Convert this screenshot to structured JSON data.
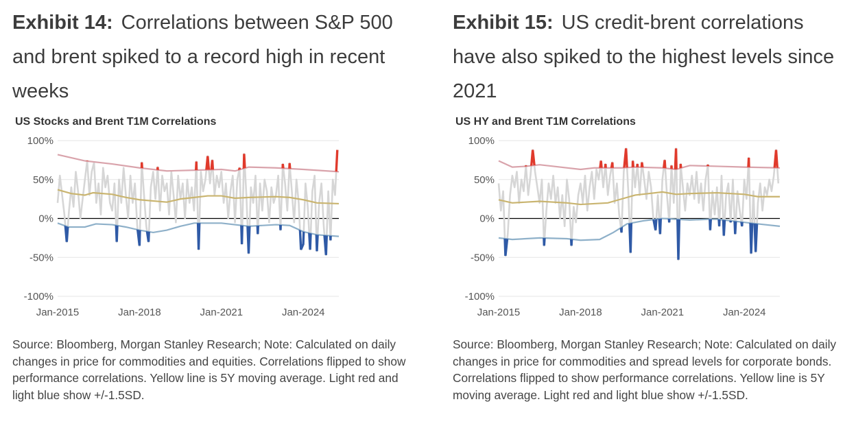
{
  "exhibits": [
    {
      "label": "Exhibit 14:",
      "title": "Correlations between S&P 500 and brent spiked to a record high in recent weeks",
      "source": "Source: Bloomberg, Morgan Stanley Research; Note: Calculated on daily changes in price for commodities and equities. Correlations flipped to show performance correlations. Yellow line is 5Y moving average. Light red and light blue show +/-1.5SD."
    },
    {
      "label": "Exhibit 15:",
      "title": "US credit-brent correlations have also spiked to the highest levels since 2021",
      "source": "Source: Bloomberg, Morgan Stanley Research; Note: Calculated on daily changes in price for commodities and spread levels for corporate bonds. Correlations flipped to show performance correlations. Yellow line is 5Y moving average. Light red and light blue show +/-1.5SD."
    }
  ],
  "colors": {
    "corr": "#d6d6d6",
    "above": "#e03a2c",
    "below": "#2f5aa6",
    "upper_band": "#d9a3ab",
    "lower_band": "#8eb0c9",
    "ma": "#c9b46f",
    "zero": "#000000",
    "grid": "#e6e6e6"
  },
  "chart_data": [
    {
      "type": "line",
      "title": "US Stocks and Brent T1M Correlations",
      "ylim": [
        -100,
        100
      ],
      "xlim": [
        2015.0,
        2025.3
      ],
      "yticks": [
        {
          "v": 100,
          "label": "100%"
        },
        {
          "v": 50,
          "label": "50%"
        },
        {
          "v": 0,
          "label": "0%"
        },
        {
          "v": -50,
          "label": "-50%"
        },
        {
          "v": -100,
          "label": "-100%"
        }
      ],
      "xticks": [
        {
          "v": 2015,
          "label": "Jan-2015"
        },
        {
          "v": 2018,
          "label": "Jan-2018"
        },
        {
          "v": 2021,
          "label": "Jan-2021"
        },
        {
          "v": 2024,
          "label": "Jan-2024"
        }
      ],
      "start": 2015.0,
      "step": 0.0833,
      "correlation": [
        20,
        55,
        30,
        5,
        -30,
        10,
        40,
        15,
        60,
        35,
        0,
        25,
        50,
        74,
        30,
        60,
        72,
        20,
        45,
        5,
        65,
        40,
        55,
        20,
        10,
        45,
        -30,
        50,
        20,
        65,
        30,
        0,
        55,
        20,
        45,
        -10,
        -35,
        72,
        30,
        -10,
        -30,
        40,
        60,
        25,
        66,
        10,
        55,
        35,
        45,
        5,
        60,
        30,
        -5,
        55,
        25,
        45,
        0,
        50,
        20,
        40,
        10,
        73,
        -40,
        60,
        35,
        50,
        80,
        45,
        75,
        30,
        55,
        40,
        60,
        20,
        45,
        0,
        35,
        55,
        -5,
        50,
        65,
        -33,
        83,
        30,
        -45,
        40,
        20,
        55,
        -20,
        45,
        10,
        50,
        35,
        -5,
        40,
        20,
        30,
        55,
        -15,
        70,
        45,
        10,
        71,
        35,
        -5,
        50,
        20,
        -40,
        -33,
        45,
        15,
        -40,
        35,
        55,
        -42,
        20,
        45,
        -10,
        -47,
        35,
        -28,
        50,
        30,
        88
      ],
      "upper_band": [
        [
          2015,
          82
        ],
        [
          2016,
          74
        ],
        [
          2017,
          70
        ],
        [
          2018,
          65
        ],
        [
          2019,
          61
        ],
        [
          2020,
          62
        ],
        [
          2021,
          63
        ],
        [
          2021.5,
          61
        ],
        [
          2022,
          66
        ],
        [
          2023,
          65
        ],
        [
          2024,
          63
        ],
        [
          2025.3,
          60
        ]
      ],
      "lower_band": [
        [
          2015,
          -6
        ],
        [
          2015.4,
          -11
        ],
        [
          2016,
          -11
        ],
        [
          2016.4,
          -7
        ],
        [
          2017,
          -8
        ],
        [
          2017.5,
          -11
        ],
        [
          2018,
          -15
        ],
        [
          2018.5,
          -18
        ],
        [
          2019,
          -15
        ],
        [
          2019.5,
          -10
        ],
        [
          2020,
          -6
        ],
        [
          2021,
          -6
        ],
        [
          2022,
          -10
        ],
        [
          2023,
          -8
        ],
        [
          2023.5,
          -9
        ],
        [
          2024,
          -17
        ],
        [
          2024.5,
          -21
        ],
        [
          2025.3,
          -23
        ]
      ],
      "moving_average": [
        [
          2015,
          37
        ],
        [
          2015.5,
          32
        ],
        [
          2016,
          30
        ],
        [
          2016.3,
          33
        ],
        [
          2017,
          31
        ],
        [
          2017.5,
          27
        ],
        [
          2018,
          24
        ],
        [
          2019,
          21
        ],
        [
          2019.5,
          25
        ],
        [
          2020,
          27
        ],
        [
          2020.5,
          29
        ],
        [
          2021,
          29
        ],
        [
          2021.5,
          26
        ],
        [
          2022,
          27
        ],
        [
          2023,
          28
        ],
        [
          2023.5,
          27
        ],
        [
          2024,
          24
        ],
        [
          2024.5,
          20
        ],
        [
          2025.3,
          19
        ]
      ]
    },
    {
      "type": "line",
      "title": "US HY and Brent T1M Correlations",
      "ylim": [
        -100,
        100
      ],
      "xlim": [
        2015.0,
        2025.3
      ],
      "yticks": [
        {
          "v": 100,
          "label": "100%"
        },
        {
          "v": 50,
          "label": "50%"
        },
        {
          "v": 0,
          "label": "0%"
        },
        {
          "v": -50,
          "label": "-50%"
        },
        {
          "v": -100,
          "label": "-100%"
        }
      ],
      "xticks": [
        {
          "v": 2015,
          "label": "Jan-2015"
        },
        {
          "v": 2018,
          "label": "Jan-2018"
        },
        {
          "v": 2021,
          "label": "Jan-2021"
        },
        {
          "v": 2024,
          "label": "Jan-2024"
        }
      ],
      "start": 2015.0,
      "step": 0.0833,
      "correlation": [
        45,
        10,
        35,
        -48,
        -20,
        30,
        55,
        40,
        60,
        20,
        50,
        35,
        68,
        30,
        55,
        88,
        60,
        40,
        20,
        50,
        -35,
        10,
        45,
        25,
        55,
        20,
        40,
        0,
        30,
        -10,
        50,
        25,
        -35,
        15,
        -5,
        30,
        45,
        20,
        55,
        10,
        40,
        60,
        25,
        63,
        50,
        74,
        40,
        70,
        30,
        55,
        72,
        20,
        45,
        5,
        -18,
        60,
        90,
        35,
        -44,
        74,
        40,
        70,
        30,
        72,
        50,
        25,
        60,
        40,
        0,
        -15,
        30,
        -20,
        50,
        75,
        30,
        -5,
        68,
        20,
        90,
        -53,
        70,
        40,
        10,
        45,
        30,
        55,
        25,
        60,
        20,
        45,
        10,
        50,
        69,
        -15,
        35,
        5,
        40,
        -10,
        55,
        -22,
        30,
        45,
        -5,
        50,
        -20,
        35,
        10,
        -10,
        50,
        25,
        78,
        -45,
        35,
        -43,
        20,
        45,
        10,
        40,
        30,
        50,
        35,
        55,
        88,
        45
      ],
      "upper_band": [
        [
          2015,
          74
        ],
        [
          2015.5,
          66
        ],
        [
          2016,
          67
        ],
        [
          2016.5,
          69
        ],
        [
          2017,
          67
        ],
        [
          2018,
          63
        ],
        [
          2018.5,
          65
        ],
        [
          2019.5,
          65
        ],
        [
          2020,
          66
        ],
        [
          2021,
          65
        ],
        [
          2021.5,
          63
        ],
        [
          2022,
          68
        ],
        [
          2023,
          67
        ],
        [
          2024,
          66
        ],
        [
          2025.3,
          65
        ]
      ],
      "lower_band": [
        [
          2015,
          -25
        ],
        [
          2015.5,
          -27
        ],
        [
          2016.5,
          -25
        ],
        [
          2017.5,
          -26
        ],
        [
          2018,
          -28
        ],
        [
          2018.7,
          -27
        ],
        [
          2019.2,
          -18
        ],
        [
          2019.7,
          -7
        ],
        [
          2020.3,
          -3
        ],
        [
          2021,
          0
        ],
        [
          2022,
          -2
        ],
        [
          2022.7,
          -1
        ],
        [
          2023,
          -1
        ],
        [
          2023.5,
          -3
        ],
        [
          2024,
          -5
        ],
        [
          2024.5,
          -7
        ],
        [
          2025.3,
          -10
        ]
      ],
      "moving_average": [
        [
          2015,
          24
        ],
        [
          2015.5,
          20
        ],
        [
          2016.5,
          22
        ],
        [
          2017.5,
          20
        ],
        [
          2018,
          18
        ],
        [
          2019,
          20
        ],
        [
          2019.5,
          25
        ],
        [
          2020,
          30
        ],
        [
          2020.5,
          32
        ],
        [
          2021,
          34
        ],
        [
          2021.5,
          31
        ],
        [
          2022,
          32
        ],
        [
          2023,
          33
        ],
        [
          2024,
          31
        ],
        [
          2024.5,
          28
        ],
        [
          2025.3,
          28
        ]
      ]
    }
  ]
}
